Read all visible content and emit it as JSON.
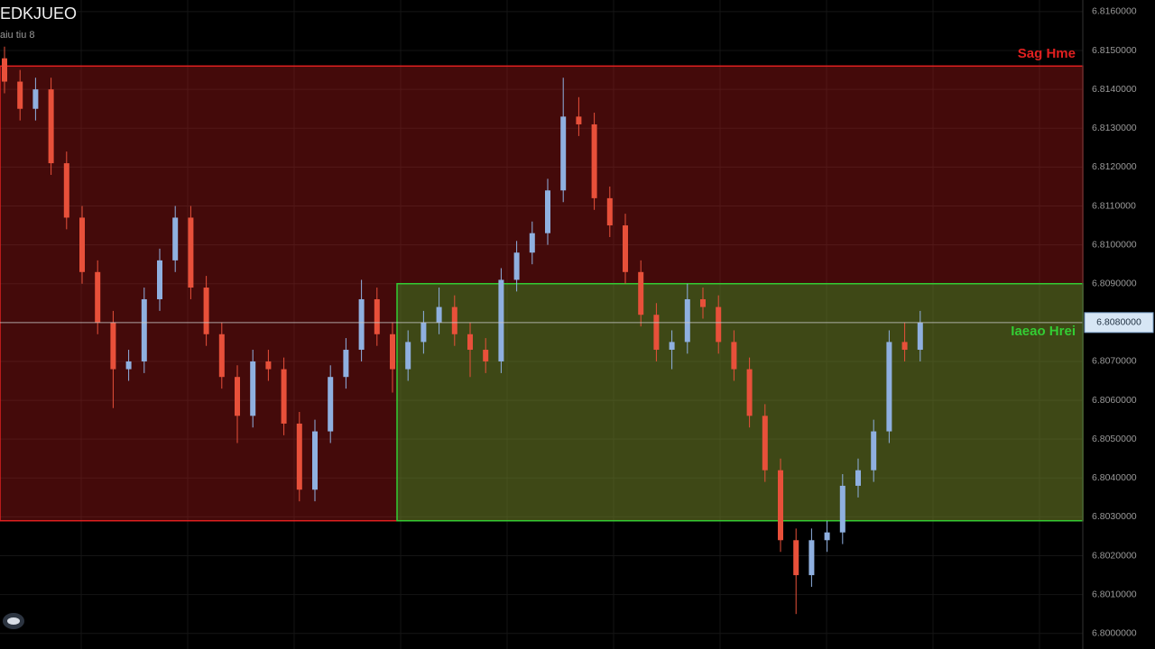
{
  "chart_data": {
    "type": "candlestick",
    "title": "EDKJUEO",
    "subtitle": "aiu tiu 8",
    "ylim": [
      6.7996,
      6.8163
    ],
    "yticks": [
      {
        "value": 6.816,
        "label": "6.8160000"
      },
      {
        "value": 6.815,
        "label": "6.8150000"
      },
      {
        "value": 6.814,
        "label": "6.8140000"
      },
      {
        "value": 6.813,
        "label": "6.8130000"
      },
      {
        "value": 6.812,
        "label": "6.8120000"
      },
      {
        "value": 6.811,
        "label": "6.8110000"
      },
      {
        "value": 6.81,
        "label": "6.8100000"
      },
      {
        "value": 6.809,
        "label": "6.8090000"
      },
      {
        "value": 6.807,
        "label": "6.8070000"
      },
      {
        "value": 6.806,
        "label": "6.8060000"
      },
      {
        "value": 6.805,
        "label": "6.8050000"
      },
      {
        "value": 6.804,
        "label": "6.8040000"
      },
      {
        "value": 6.803,
        "label": "6.8030000"
      },
      {
        "value": 6.802,
        "label": "6.8020000"
      },
      {
        "value": 6.801,
        "label": "6.8010000"
      },
      {
        "value": 6.8,
        "label": "6.8000000"
      }
    ],
    "up_color": "#8fb0e0",
    "down_color": "#e8503a",
    "open": [
      6.8148,
      6.8142,
      6.8135,
      6.814,
      6.8121,
      6.8107,
      6.8093,
      6.808,
      6.8068,
      6.807,
      6.8086,
      6.8096,
      6.8107,
      6.8089,
      6.8077,
      6.8066,
      6.8056,
      6.807,
      6.8068,
      6.8054,
      6.8037,
      6.8052,
      6.8066,
      6.8073,
      6.8086,
      6.8077,
      6.8068,
      6.8075,
      6.808,
      6.8084,
      6.8077,
      6.8073,
      6.807,
      6.8091,
      6.8098,
      6.8103,
      6.8114,
      6.8133,
      6.8131,
      6.8112,
      6.8105,
      6.8093,
      6.8082,
      6.8073,
      6.8075,
      6.8086,
      6.8084,
      6.8075,
      6.8068,
      6.8056,
      6.8042,
      6.8024,
      6.8015,
      6.8024,
      6.8026,
      6.8038,
      6.8042,
      6.8052,
      6.8075,
      6.8073
    ],
    "high": [
      6.8151,
      6.8145,
      6.8143,
      6.8143,
      6.8124,
      6.811,
      6.8096,
      6.8083,
      6.8073,
      6.8089,
      6.8099,
      6.811,
      6.811,
      6.8092,
      6.808,
      6.8069,
      6.8073,
      6.8073,
      6.8071,
      6.8057,
      6.8055,
      6.8069,
      6.8076,
      6.8091,
      6.8089,
      6.808,
      6.8078,
      6.8083,
      6.8089,
      6.8087,
      6.808,
      6.8076,
      6.8094,
      6.8101,
      6.8106,
      6.8117,
      6.8143,
      6.8138,
      6.8134,
      6.8115,
      6.8108,
      6.8096,
      6.8085,
      6.8078,
      6.809,
      6.8089,
      6.8087,
      6.8078,
      6.8071,
      6.8059,
      6.8045,
      6.8027,
      6.8027,
      6.8029,
      6.8041,
      6.8045,
      6.8055,
      6.8078,
      6.808,
      6.8083
    ],
    "low": [
      6.8139,
      6.8132,
      6.8132,
      6.8118,
      6.8104,
      6.809,
      6.8077,
      6.8058,
      6.8065,
      6.8067,
      6.8083,
      6.8093,
      6.8086,
      6.8074,
      6.8063,
      6.8049,
      6.8053,
      6.8065,
      6.8051,
      6.8034,
      6.8034,
      6.8049,
      6.8063,
      6.807,
      6.8074,
      6.8062,
      6.8065,
      6.8072,
      6.8077,
      6.8074,
      6.8066,
      6.8067,
      6.8067,
      6.8088,
      6.8095,
      6.81,
      6.8111,
      6.8128,
      6.8109,
      6.8102,
      6.809,
      6.8079,
      6.807,
      6.8068,
      6.8072,
      6.8081,
      6.8072,
      6.8065,
      6.8053,
      6.8039,
      6.8021,
      6.8005,
      6.8012,
      6.8021,
      6.8023,
      6.8035,
      6.8039,
      6.8049,
      6.807,
      6.807
    ],
    "close": [
      6.8142,
      6.8135,
      6.814,
      6.8121,
      6.8107,
      6.8093,
      6.808,
      6.8068,
      6.807,
      6.8086,
      6.8096,
      6.8107,
      6.8089,
      6.8077,
      6.8066,
      6.8056,
      6.807,
      6.8068,
      6.8054,
      6.8037,
      6.8052,
      6.8066,
      6.8073,
      6.8086,
      6.8077,
      6.8068,
      6.8075,
      6.808,
      6.8084,
      6.8077,
      6.8073,
      6.807,
      6.8091,
      6.8098,
      6.8103,
      6.8114,
      6.8133,
      6.8131,
      6.8112,
      6.8105,
      6.8093,
      6.8082,
      6.8073,
      6.8075,
      6.8086,
      6.8084,
      6.8075,
      6.8068,
      6.8056,
      6.8042,
      6.8024,
      6.8015,
      6.8024,
      6.8026,
      6.8038,
      6.8042,
      6.8052,
      6.8075,
      6.8073,
      6.808
    ],
    "zones": [
      {
        "label": "Sag Hme",
        "top": 6.8146,
        "bottom": 6.8029,
        "color": "#e02020"
      },
      {
        "label": "Iaeao Hrei",
        "top": 6.809,
        "bottom": 6.8029,
        "color": "#33cc33"
      }
    ],
    "last_price": {
      "value": 6.808,
      "label": "6.8080000"
    }
  }
}
